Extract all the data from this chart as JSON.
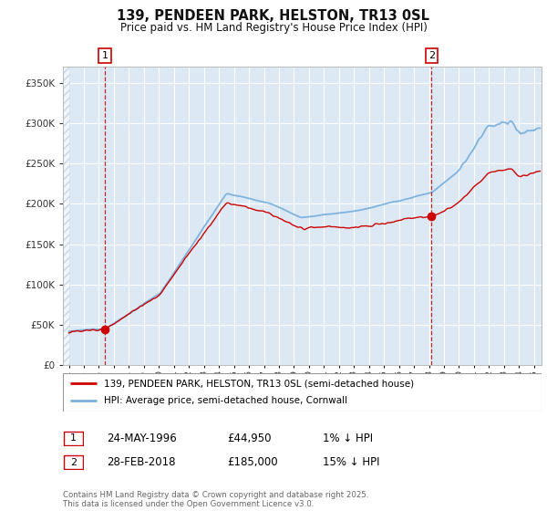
{
  "title": "139, PENDEEN PARK, HELSTON, TR13 0SL",
  "subtitle": "Price paid vs. HM Land Registry's House Price Index (HPI)",
  "legend_line1": "139, PENDEEN PARK, HELSTON, TR13 0SL (semi-detached house)",
  "legend_line2": "HPI: Average price, semi-detached house, Cornwall",
  "annotation1_date": "24-MAY-1996",
  "annotation1_price": "£44,950",
  "annotation1_hpi": "1% ↓ HPI",
  "annotation2_date": "28-FEB-2018",
  "annotation2_price": "£185,000",
  "annotation2_hpi": "15% ↓ HPI",
  "footer": "Contains HM Land Registry data © Crown copyright and database right 2025.\nThis data is licensed under the Open Government Licence v3.0.",
  "bg_color": "#dce9f5",
  "red_line_color": "#cc0000",
  "blue_line_color": "#7ab0dc",
  "vline_color": "#cc0000",
  "ylim": [
    0,
    370000
  ],
  "xlim_start": 1993.6,
  "xlim_end": 2025.5,
  "marker_x1": 1996.39,
  "marker_y1": 44950,
  "marker_x2": 2018.17,
  "marker_y2": 185000
}
